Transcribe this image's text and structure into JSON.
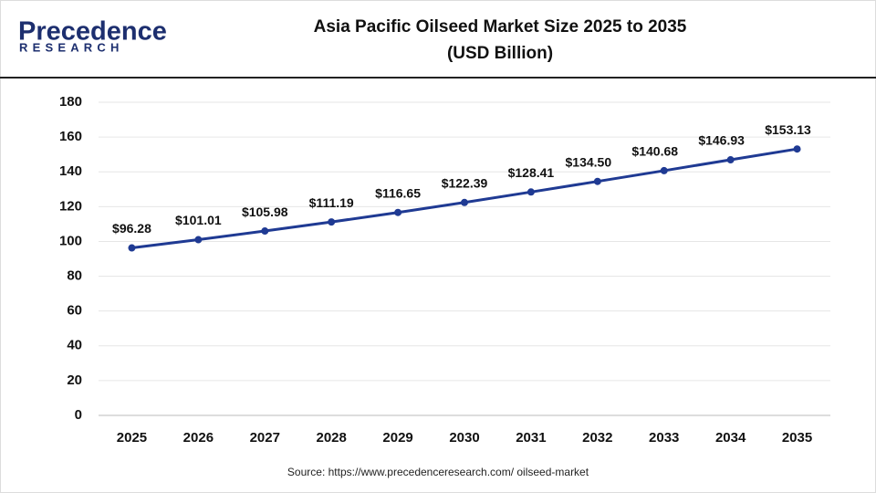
{
  "logo": {
    "name": "Precedence",
    "tagline": "RESEARCH"
  },
  "chart_data": {
    "type": "line",
    "title": "Asia Pacific Oilseed Market Size 2025 to 2035",
    "subtitle": "(USD Billion)",
    "categories": [
      "2025",
      "2026",
      "2027",
      "2028",
      "2029",
      "2030",
      "2031",
      "2032",
      "2033",
      "2034",
      "2035"
    ],
    "series": [
      {
        "name": "Market Size",
        "color": "#1f3a93",
        "values": [
          96.28,
          101.01,
          105.98,
          111.19,
          116.65,
          122.39,
          128.41,
          134.5,
          140.68,
          146.93,
          153.13
        ],
        "value_labels": [
          "$96.28",
          "$101.01",
          "$105.98",
          "$111.19",
          "$116.65",
          "$122.39",
          "$128.41",
          "$134.50",
          "$140.68",
          "$146.93",
          "$153.13"
        ]
      }
    ],
    "ylim": [
      0,
      180
    ],
    "yticks": [
      0,
      20,
      40,
      60,
      80,
      100,
      120,
      140,
      160,
      180
    ],
    "grid": true,
    "source": "Source: https://www.precedenceresearch.com/ oilseed-market"
  }
}
